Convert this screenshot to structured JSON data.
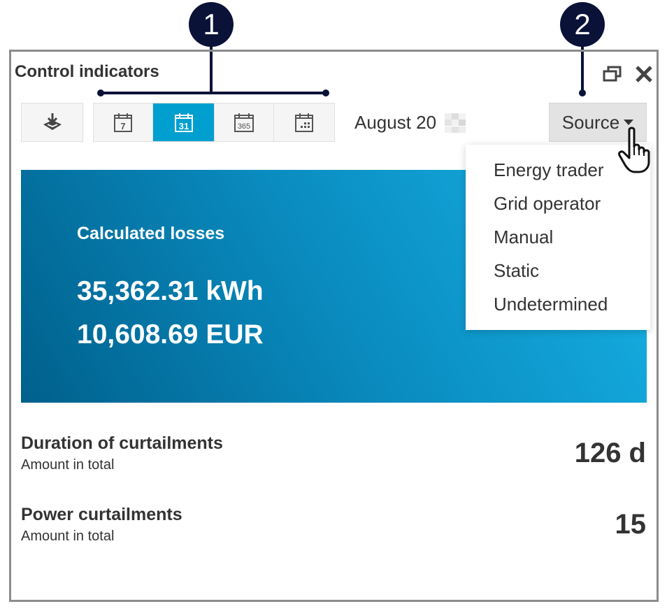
{
  "widget": {
    "title": "Control indicators"
  },
  "toolbar": {
    "segments": [
      {
        "label": "7",
        "icon": "calendar-week-icon"
      },
      {
        "label": "31",
        "icon": "calendar-month-icon",
        "active": true
      },
      {
        "label": "365",
        "icon": "calendar-year-icon"
      },
      {
        "label": "",
        "icon": "calendar-custom-icon"
      }
    ],
    "date": "August 20",
    "source_label": "Source"
  },
  "source_menu": [
    "Energy trader",
    "Grid operator",
    "Manual",
    "Static",
    "Undetermined"
  ],
  "banner": {
    "title": "Calculated losses",
    "energy": "35,362.31 kWh",
    "cost": "10,608.69 EUR"
  },
  "stats": [
    {
      "title": "Duration of curtailments",
      "subtitle": "Amount in total",
      "value": "126 d"
    },
    {
      "title": "Power curtailments",
      "subtitle": "Amount in total",
      "value": "15"
    }
  ],
  "callouts": [
    "1",
    "2"
  ],
  "colors": {
    "accent": "#009fd0",
    "callout": "#0b1238"
  }
}
